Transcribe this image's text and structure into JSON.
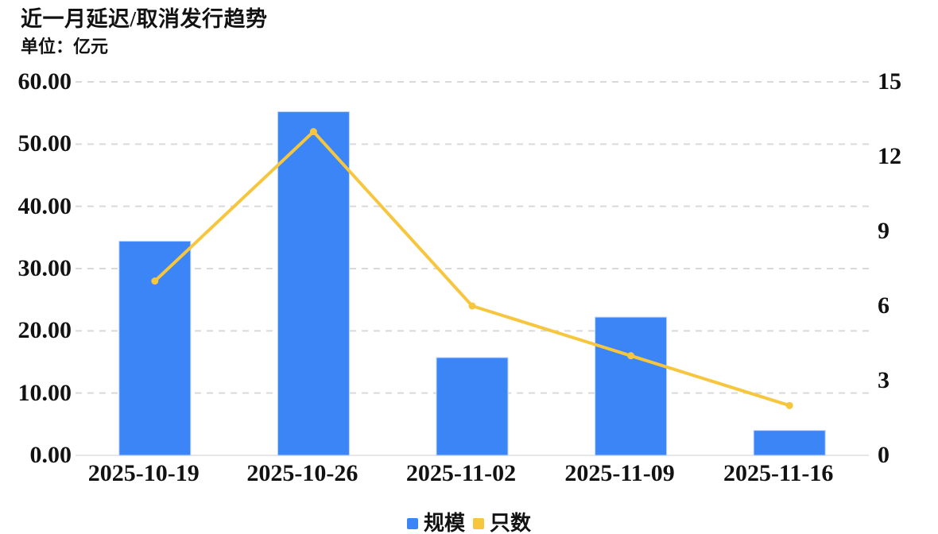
{
  "header": {
    "title": "近一月延迟/取消发行趋势",
    "unit_label": "单位：亿元"
  },
  "chart_data": {
    "type": "combo",
    "title": "近一月延迟/取消发行趋势",
    "subtitle": "单位：亿元",
    "categories": [
      "2025-10-19",
      "2025-10-26",
      "2025-11-02",
      "2025-11-09",
      "2025-11-16"
    ],
    "series": [
      {
        "name": "规模",
        "type": "bar",
        "axis": "left",
        "color": "#3B85F7",
        "border_color": "#bdd5fb",
        "values": [
          34.4,
          55.2,
          15.7,
          22.2,
          4.0
        ]
      },
      {
        "name": "只数",
        "type": "line",
        "axis": "right",
        "color": "#F6C63F",
        "values": [
          7,
          13,
          6,
          4,
          2
        ]
      }
    ],
    "left_axis": {
      "min": 0,
      "max": 60,
      "step": 10,
      "tick_labels": [
        "0.00",
        "10.00",
        "20.00",
        "30.00",
        "40.00",
        "50.00",
        "60.00"
      ]
    },
    "right_axis": {
      "min": 0,
      "max": 15,
      "step": 3,
      "tick_labels": [
        "0",
        "3",
        "6",
        "9",
        "12",
        "15"
      ]
    },
    "grid": {
      "horizontal": true,
      "style": "dashed",
      "color": "#d9d9d9"
    },
    "axis_line_color": "#e7e7e7",
    "text_color": "#121212",
    "legend_position": "bottom-center"
  }
}
